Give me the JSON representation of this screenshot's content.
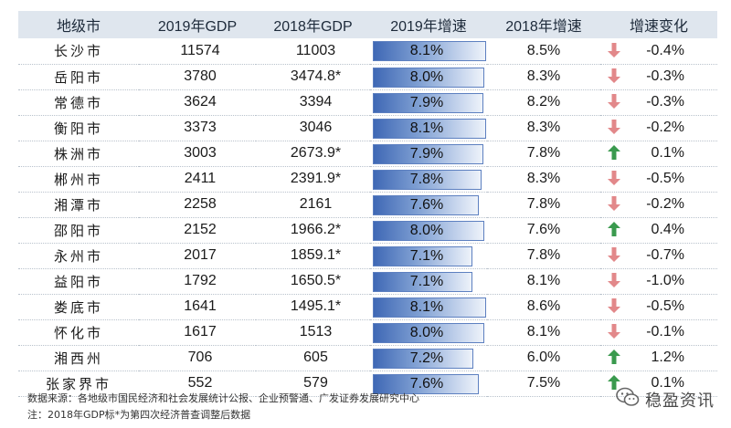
{
  "headers": [
    "地级市",
    "2019年GDP",
    "2018年GDP",
    "2019年增速",
    "2018年增速",
    "增速变化"
  ],
  "rows": [
    {
      "city": "长沙市",
      "gdp2019": "11574",
      "gdp2018": "11003",
      "growth2019": "8.1%",
      "growth2018": "8.5%",
      "trend": "down",
      "change": "-0.4%"
    },
    {
      "city": "岳阳市",
      "gdp2019": "3780",
      "gdp2018": "3474.8*",
      "growth2019": "8.0%",
      "growth2018": "8.3%",
      "trend": "down",
      "change": "-0.3%"
    },
    {
      "city": "常德市",
      "gdp2019": "3624",
      "gdp2018": "3394",
      "growth2019": "7.9%",
      "growth2018": "8.2%",
      "trend": "down",
      "change": "-0.3%"
    },
    {
      "city": "衡阳市",
      "gdp2019": "3373",
      "gdp2018": "3046",
      "growth2019": "8.1%",
      "growth2018": "8.3%",
      "trend": "down",
      "change": "-0.2%"
    },
    {
      "city": "株洲市",
      "gdp2019": "3003",
      "gdp2018": "2673.9*",
      "growth2019": "7.9%",
      "growth2018": "7.8%",
      "trend": "up",
      "change": "0.1%"
    },
    {
      "city": "郴州市",
      "gdp2019": "2411",
      "gdp2018": "2391.9*",
      "growth2019": "7.8%",
      "growth2018": "8.3%",
      "trend": "down",
      "change": "-0.5%"
    },
    {
      "city": "湘潭市",
      "gdp2019": "2258",
      "gdp2018": "2161",
      "growth2019": "7.6%",
      "growth2018": "7.8%",
      "trend": "down",
      "change": "-0.2%"
    },
    {
      "city": "邵阳市",
      "gdp2019": "2152",
      "gdp2018": "1966.2*",
      "growth2019": "8.0%",
      "growth2018": "7.6%",
      "trend": "up",
      "change": "0.4%"
    },
    {
      "city": "永州市",
      "gdp2019": "2017",
      "gdp2018": "1859.1*",
      "growth2019": "7.1%",
      "growth2018": "7.8%",
      "trend": "down",
      "change": "-0.7%"
    },
    {
      "city": "益阳市",
      "gdp2019": "1792",
      "gdp2018": "1650.5*",
      "growth2019": "7.1%",
      "growth2018": "8.1%",
      "trend": "down",
      "change": "-1.0%"
    },
    {
      "city": "娄底市",
      "gdp2019": "1641",
      "gdp2018": "1495.1*",
      "growth2019": "8.1%",
      "growth2018": "8.6%",
      "trend": "down",
      "change": "-0.5%"
    },
    {
      "city": "怀化市",
      "gdp2019": "1617",
      "gdp2018": "1513",
      "growth2019": "8.0%",
      "growth2018": "8.1%",
      "trend": "down",
      "change": "-0.1%"
    },
    {
      "city": "湘西州",
      "gdp2019": "706",
      "gdp2018": "605",
      "growth2019": "7.2%",
      "growth2018": "6.0%",
      "trend": "up",
      "change": "1.2%"
    },
    {
      "city": "张家界市",
      "gdp2019": "552",
      "gdp2018": "579",
      "growth2019": "7.6%",
      "growth2018": "7.5%",
      "trend": "up",
      "change": "0.1%"
    }
  ],
  "footnote": {
    "source": "数据来源：各地级市国民经济和社会发展统计公报、企业预警通、广发证券发展研究中心",
    "note": "注：2018年GDP标*为第四次经济普查调整后数据"
  },
  "brand": {
    "name": "稳盈资讯",
    "icon": "wechat-icon"
  },
  "colors": {
    "header_bg": "#dfe6ee",
    "bar_dark": "#3f68b5",
    "up_arrow": "#3a9a4e",
    "down_arrow": "#e2888a"
  }
}
